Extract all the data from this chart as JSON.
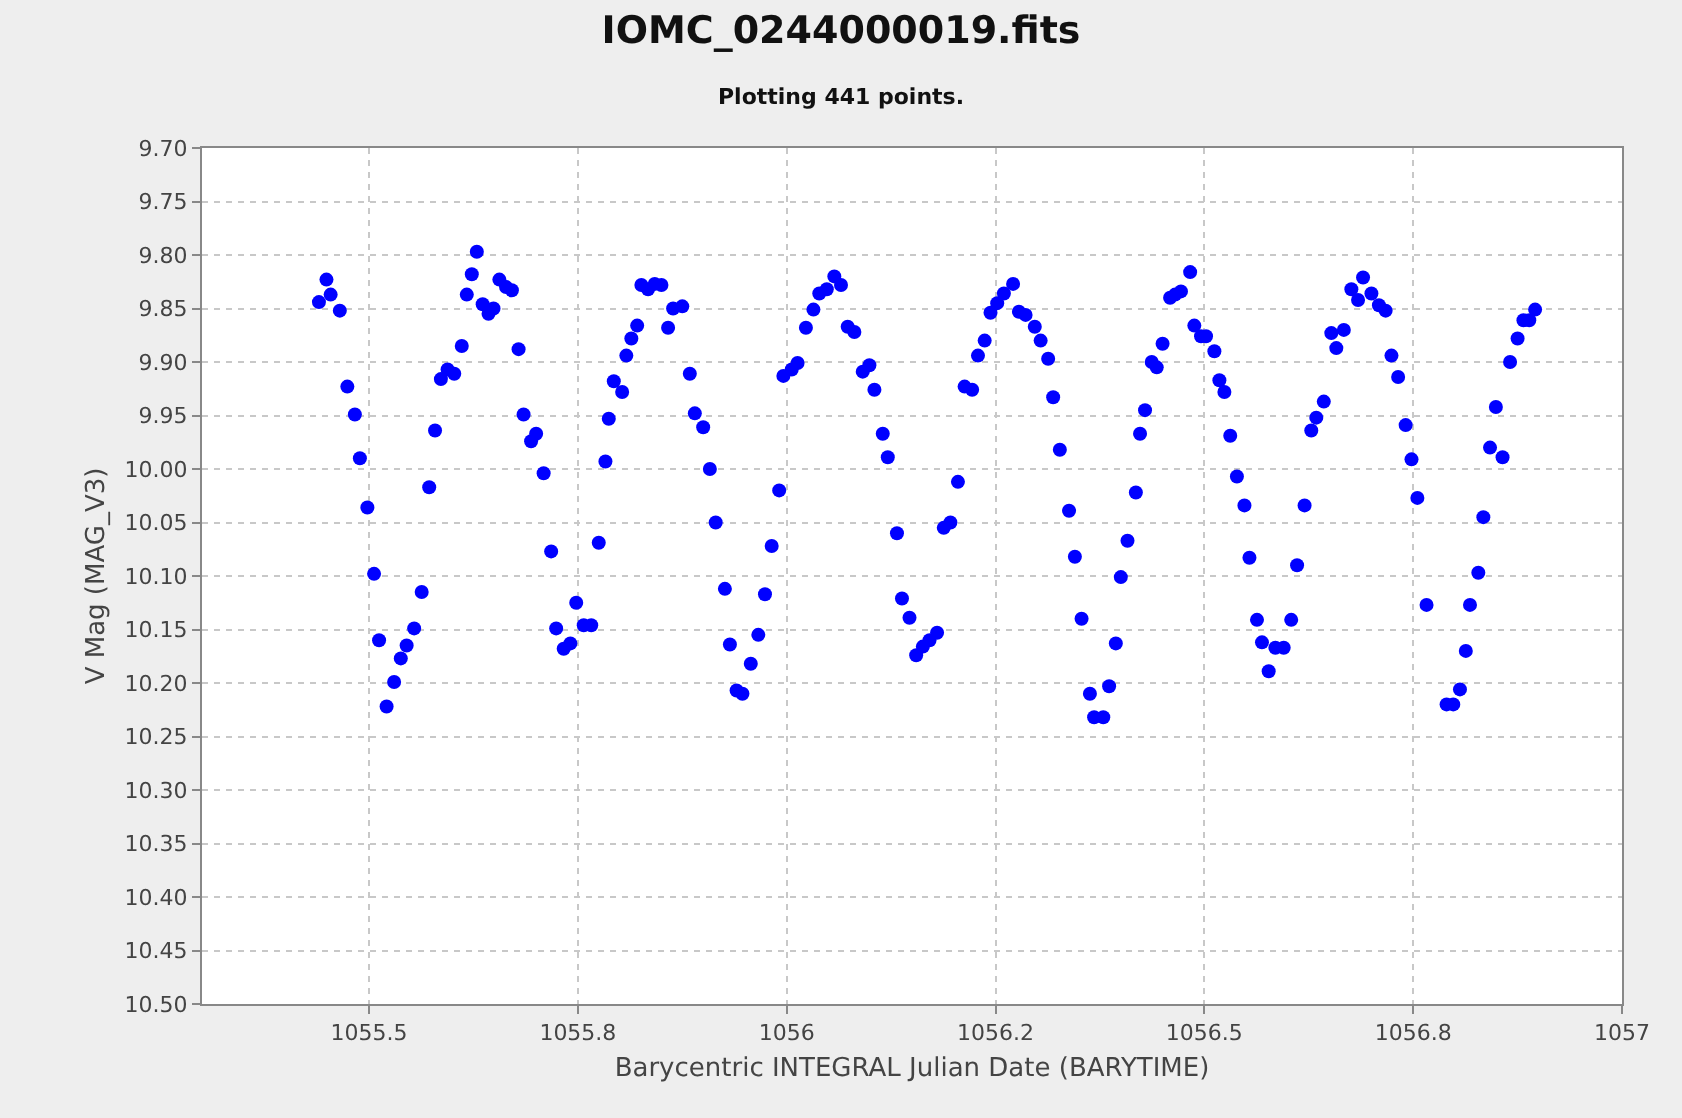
{
  "chart_data": {
    "type": "scatter",
    "title": "IOMC_0244000019.fits",
    "subtitle": "Plotting 441 points.",
    "xlabel": "Barycentric INTEGRAL Julian Date (BARYTIME)",
    "ylabel": "V Mag (MAG_V3)",
    "xlim": [
      1055.3,
      1057.0
    ],
    "xticks": [
      1055.5,
      {
        "value": 1055.75,
        "label": "1055.8"
      },
      1056,
      {
        "value": 1056.25,
        "label": "1056.2"
      },
      1056.5,
      {
        "value": 1056.75,
        "label": "1056.8"
      },
      1057
    ],
    "ylim": [
      10.5,
      9.7
    ],
    "yticks": [
      {
        "value": 9.7,
        "label": "9.70"
      },
      9.75,
      {
        "value": 9.8,
        "label": "9.80"
      },
      9.85,
      {
        "value": 9.9,
        "label": "9.90"
      },
      9.95,
      {
        "value": 10.0,
        "label": "10.00"
      },
      10.05,
      {
        "value": 10.1,
        "label": "10.10"
      },
      10.15,
      {
        "value": 10.2,
        "label": "10.20"
      },
      10.25,
      {
        "value": 10.3,
        "label": "10.30"
      },
      10.35,
      {
        "value": 10.4,
        "label": "10.40"
      },
      10.45,
      {
        "value": 10.5,
        "label": "10.50"
      }
    ],
    "grid": true,
    "marker": "circle",
    "series": [
      {
        "color": "#0000ff",
        "x": [
          1055.44,
          1055.449,
          1055.454,
          1055.465,
          1055.474,
          1055.483,
          1055.489,
          1055.498,
          1055.506,
          1055.512,
          1055.521,
          1055.53,
          1055.538,
          1055.545,
          1055.554,
          1055.563,
          1055.572,
          1055.579,
          1055.586,
          1055.594,
          1055.602,
          1055.611,
          1055.617,
          1055.623,
          1055.629,
          1055.636,
          1055.643,
          1055.649,
          1055.656,
          1055.664,
          1055.671,
          1055.679,
          1055.685,
          1055.694,
          1055.7,
          1055.709,
          1055.718,
          1055.724,
          1055.733,
          1055.741,
          1055.748,
          1055.757,
          1055.766,
          1055.775,
          1055.783,
          1055.787,
          1055.793,
          1055.803,
          1055.808,
          1055.814,
          1055.821,
          1055.826,
          1055.834,
          1055.842,
          1055.85,
          1055.858,
          1055.864,
          1055.875,
          1055.884,
          1055.89,
          1055.9,
          1055.908,
          1055.915,
          1055.926,
          1055.932,
          1055.94,
          1055.947,
          1055.957,
          1055.966,
          1055.974,
          1055.982,
          1055.991,
          1055.996,
          1056.006,
          1056.013,
          1056.023,
          1056.032,
          1056.039,
          1056.048,
          1056.057,
          1056.065,
          1056.073,
          1056.081,
          1056.091,
          1056.099,
          1056.105,
          1056.115,
          1056.121,
          1056.132,
          1056.138,
          1056.147,
          1056.155,
          1056.163,
          1056.171,
          1056.18,
          1056.188,
          1056.196,
          1056.205,
          1056.213,
          1056.222,
          1056.229,
          1056.237,
          1056.244,
          1056.252,
          1056.26,
          1056.271,
          1056.278,
          1056.286,
          1056.297,
          1056.304,
          1056.313,
          1056.319,
          1056.327,
          1056.338,
          1056.345,
          1056.353,
          1056.363,
          1056.368,
          1056.379,
          1056.386,
          1056.394,
          1056.4,
          1056.408,
          1056.418,
          1056.423,
          1056.429,
          1056.437,
          1056.443,
          1056.45,
          1056.459,
          1056.465,
          1056.472,
          1056.483,
          1056.488,
          1056.496,
          1056.502,
          1056.512,
          1056.518,
          1056.524,
          1056.531,
          1056.539,
          1056.548,
          1056.554,
          1056.563,
          1056.569,
          1056.577,
          1056.585,
          1056.595,
          1056.604,
          1056.611,
          1056.62,
          1056.628,
          1056.634,
          1056.643,
          1056.652,
          1056.658,
          1056.667,
          1056.676,
          1056.684,
          1056.69,
          1056.7,
          1056.709,
          1056.717,
          1056.724,
          1056.732,
          1056.741,
          1056.748,
          1056.755,
          1056.766,
          1056.79,
          1056.798,
          1056.806,
          1056.813,
          1056.818,
          1056.828,
          1056.834,
          1056.842,
          1056.849,
          1056.857,
          1056.866,
          1056.875,
          1056.882,
          1056.889,
          1056.896
        ],
        "values": [
          9.844,
          9.823,
          9.837,
          9.852,
          9.923,
          9.949,
          9.99,
          10.036,
          10.098,
          10.16,
          10.222,
          10.199,
          10.177,
          10.165,
          10.149,
          10.115,
          10.017,
          9.964,
          9.916,
          9.907,
          9.911,
          9.885,
          9.837,
          9.818,
          9.797,
          9.846,
          9.855,
          9.85,
          9.823,
          9.83,
          9.833,
          9.888,
          9.949,
          9.974,
          9.967,
          10.004,
          10.077,
          10.149,
          10.168,
          10.163,
          10.125,
          10.146,
          10.146,
          10.069,
          9.993,
          9.953,
          9.918,
          9.928,
          9.894,
          9.878,
          9.866,
          9.828,
          9.832,
          9.827,
          9.828,
          9.868,
          9.85,
          9.848,
          9.911,
          9.948,
          9.961,
          10.0,
          10.05,
          10.112,
          10.164,
          10.207,
          10.21,
          10.182,
          10.155,
          10.117,
          10.072,
          10.02,
          9.913,
          9.907,
          9.901,
          9.868,
          9.851,
          9.836,
          9.832,
          9.82,
          9.828,
          9.867,
          9.872,
          9.909,
          9.903,
          9.926,
          9.967,
          9.989,
          10.06,
          10.121,
          10.139,
          10.174,
          10.166,
          10.16,
          10.153,
          10.055,
          10.05,
          10.012,
          9.923,
          9.926,
          9.894,
          9.88,
          9.854,
          9.845,
          9.836,
          9.827,
          9.853,
          9.856,
          9.867,
          9.88,
          9.897,
          9.933,
          9.982,
          10.039,
          10.082,
          10.14,
          10.21,
          10.232,
          10.232,
          10.203,
          10.163,
          10.101,
          10.067,
          10.022,
          9.967,
          9.945,
          9.9,
          9.905,
          9.883,
          9.84,
          9.837,
          9.834,
          9.816,
          9.866,
          9.876,
          9.876,
          9.89,
          9.917,
          9.928,
          9.969,
          10.007,
          10.034,
          10.083,
          10.141,
          10.162,
          10.189,
          10.167,
          10.167,
          10.141,
          10.09,
          10.034,
          9.964,
          9.952,
          9.937,
          9.873,
          9.887,
          9.87,
          9.832,
          9.842,
          9.821,
          9.836,
          9.847,
          9.852,
          9.894,
          9.914,
          9.959,
          9.991,
          10.027,
          10.127,
          10.22,
          10.22,
          10.206,
          10.17,
          10.127,
          10.097,
          10.045,
          9.98,
          9.942,
          9.989,
          9.9,
          9.878,
          9.861,
          9.861,
          9.851
        ]
      }
    ]
  }
}
